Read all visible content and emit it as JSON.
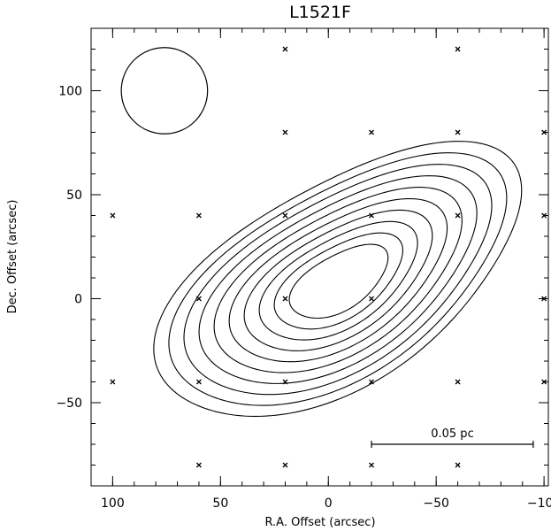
{
  "chart_data": {
    "type": "contour",
    "title": "L1521F",
    "xlabel": "R.A. Offset (arcsec)",
    "ylabel": "Dec. Offset (arcsec)",
    "xlim": [
      110,
      -102
    ],
    "ylim": [
      -90,
      130
    ],
    "x_reversed": true,
    "grid": false,
    "x_ticks": [
      {
        "value": 100,
        "label": "100"
      },
      {
        "value": 50,
        "label": "50"
      },
      {
        "value": 0,
        "label": "0"
      },
      {
        "value": -50,
        "label": "−50"
      },
      {
        "value": -100,
        "label": "−100"
      }
    ],
    "y_ticks": [
      {
        "value": 100,
        "label": "100"
      },
      {
        "value": 50,
        "label": "50"
      },
      {
        "value": 0,
        "label": "0"
      },
      {
        "value": -50,
        "label": "−50"
      }
    ],
    "x_minor_step": 10,
    "y_minor_step": 10,
    "beam": {
      "x": 76,
      "y": 100,
      "diameter": 40
    },
    "scale_bar": {
      "x_start": -20,
      "x_end": -95,
      "y": -70,
      "label": "0.05 pc"
    },
    "pointings": [
      [
        20,
        120
      ],
      [
        -60,
        120
      ],
      [
        20,
        80
      ],
      [
        -20,
        80
      ],
      [
        -60,
        80
      ],
      [
        -100,
        80
      ],
      [
        100,
        40
      ],
      [
        60,
        40
      ],
      [
        20,
        40
      ],
      [
        -20,
        40
      ],
      [
        -60,
        40
      ],
      [
        -100,
        40
      ],
      [
        60,
        0
      ],
      [
        20,
        0
      ],
      [
        -20,
        0
      ],
      [
        -100,
        0
      ],
      [
        100,
        -40
      ],
      [
        60,
        -40
      ],
      [
        20,
        -40
      ],
      [
        -20,
        -40
      ],
      [
        -60,
        -40
      ],
      [
        -100,
        -40
      ],
      [
        60,
        -80
      ],
      [
        20,
        -80
      ],
      [
        -20,
        -80
      ],
      [
        -60,
        -80
      ]
    ],
    "contour_model": {
      "center": [
        -5,
        8
      ],
      "position_angle_deg": 32,
      "outer_a": 93,
      "outer_b": 49,
      "innermost_scale": 0.27,
      "levels": 10
    }
  }
}
